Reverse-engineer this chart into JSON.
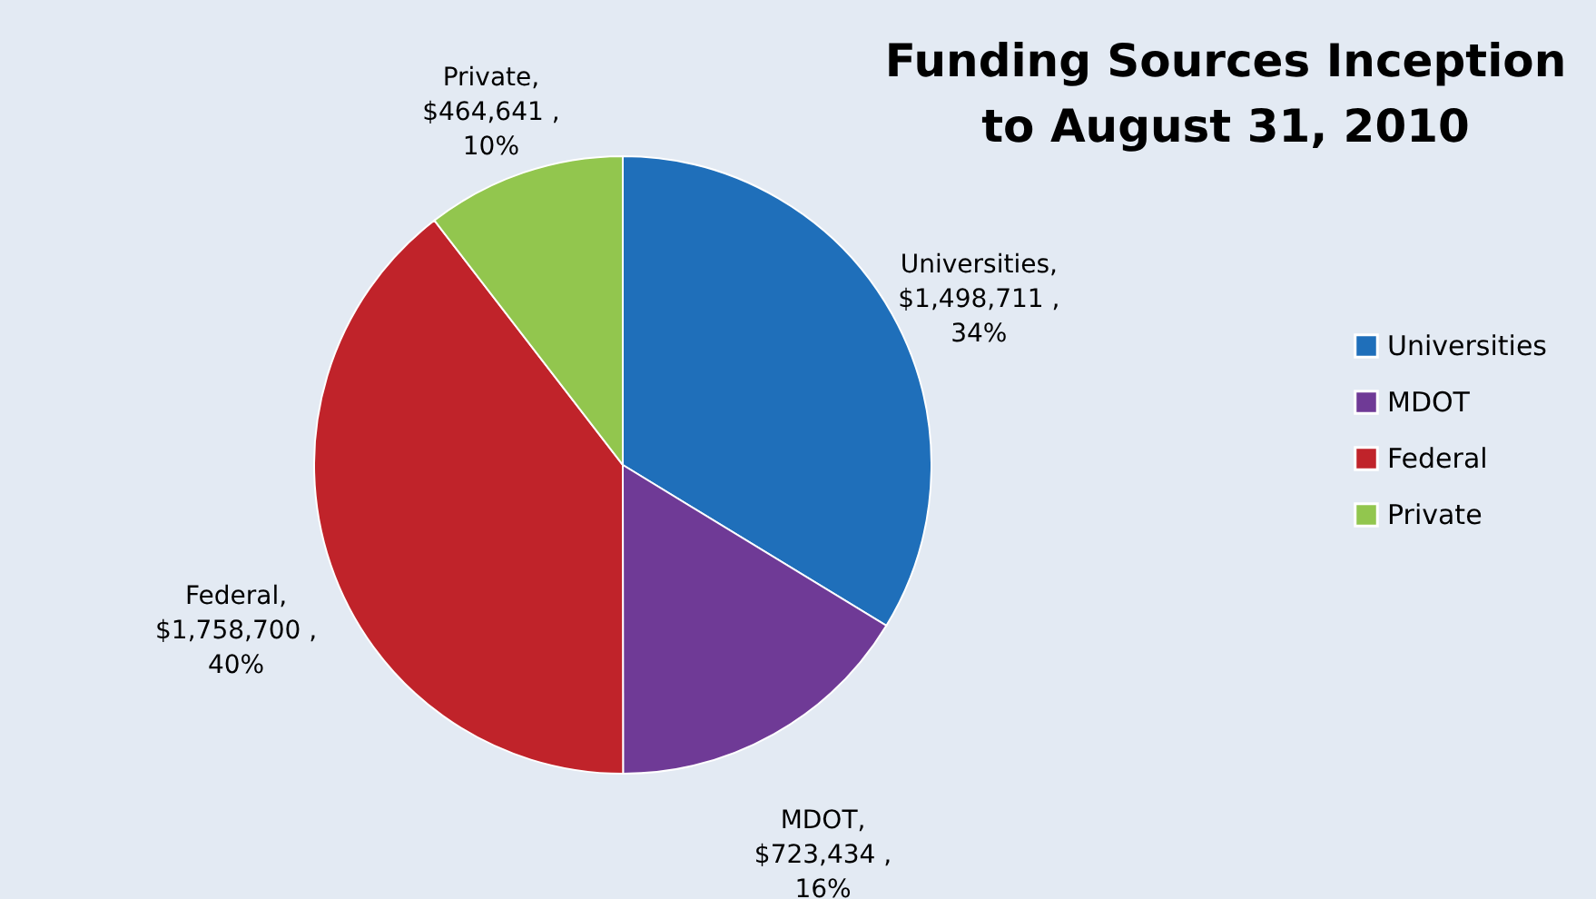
{
  "chart_data": {
    "type": "pie",
    "title": "Funding Sources Inception\nto August 31, 2010",
    "categories": [
      "Universities",
      "MDOT",
      "Federal",
      "Private"
    ],
    "values": [
      1498711,
      723434,
      1758700,
      464641
    ],
    "colors": [
      "#1f6fba",
      "#6f3a96",
      "#c0232a",
      "#92c64e"
    ],
    "value_labels": [
      "Universities,\n$1,498,711 ,\n34%",
      "MDOT,\n$723,434 ,\n16%",
      "Federal,\n$1,758,700 ,\n40%",
      "Private,\n$464,641 ,\n10%"
    ],
    "legend": "right"
  }
}
